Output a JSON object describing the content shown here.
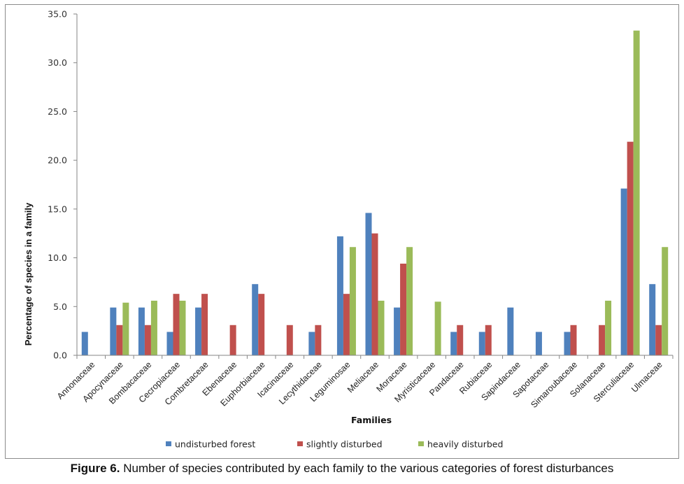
{
  "caption": {
    "label": "Figure 6.",
    "text": " Number of species contributed by each family to the various categories of forest disturbances"
  },
  "chart_data": {
    "type": "bar",
    "title": "",
    "xlabel": "Families",
    "ylabel": "Percentage of species in a family",
    "ylim": [
      0,
      35
    ],
    "yticks": [
      "0.0",
      "5.0",
      "10.0",
      "15.0",
      "20.0",
      "25.0",
      "30.0",
      "35.0"
    ],
    "grid": false,
    "legend_position": "bottom",
    "categories": [
      "Annonaceae",
      "Apocynaceae",
      "Bombacaceae",
      "Cecropiaceae",
      "Combretaceae",
      "Ebenaceae",
      "Euphorbiaceae",
      "Icacinaceae",
      "Lecythidaceae",
      "Leguminosae",
      "Meliaceae",
      "Moraceae",
      "Myristicaceae",
      "Pandaceae",
      "Rubiaceae",
      "Sapindaceae",
      "Sapotaceae",
      "Simaroubaceae",
      "Solanaceae",
      "Sterculiaceae",
      "Ulmaceae"
    ],
    "series": [
      {
        "name": "undisturbed forest",
        "color": "#4f81bd",
        "values": [
          2.4,
          4.9,
          4.9,
          2.4,
          4.9,
          0,
          7.3,
          0,
          2.4,
          12.2,
          14.6,
          4.9,
          0,
          2.4,
          2.4,
          4.9,
          2.4,
          2.4,
          0,
          17.1,
          7.3
        ]
      },
      {
        "name": "slightly disturbed",
        "color": "#c0504d",
        "values": [
          0,
          3.1,
          3.1,
          6.3,
          6.3,
          3.1,
          6.3,
          3.1,
          3.1,
          6.3,
          12.5,
          9.4,
          0,
          3.1,
          3.1,
          0,
          0,
          3.1,
          3.1,
          21.9,
          3.1
        ]
      },
      {
        "name": "heavily disturbed",
        "color": "#9bbb59",
        "values": [
          0,
          5.4,
          5.6,
          5.6,
          0,
          0,
          0,
          0,
          0,
          11.1,
          5.6,
          11.1,
          5.5,
          0,
          0,
          0,
          0,
          0,
          5.6,
          33.3,
          11.1
        ]
      }
    ]
  }
}
